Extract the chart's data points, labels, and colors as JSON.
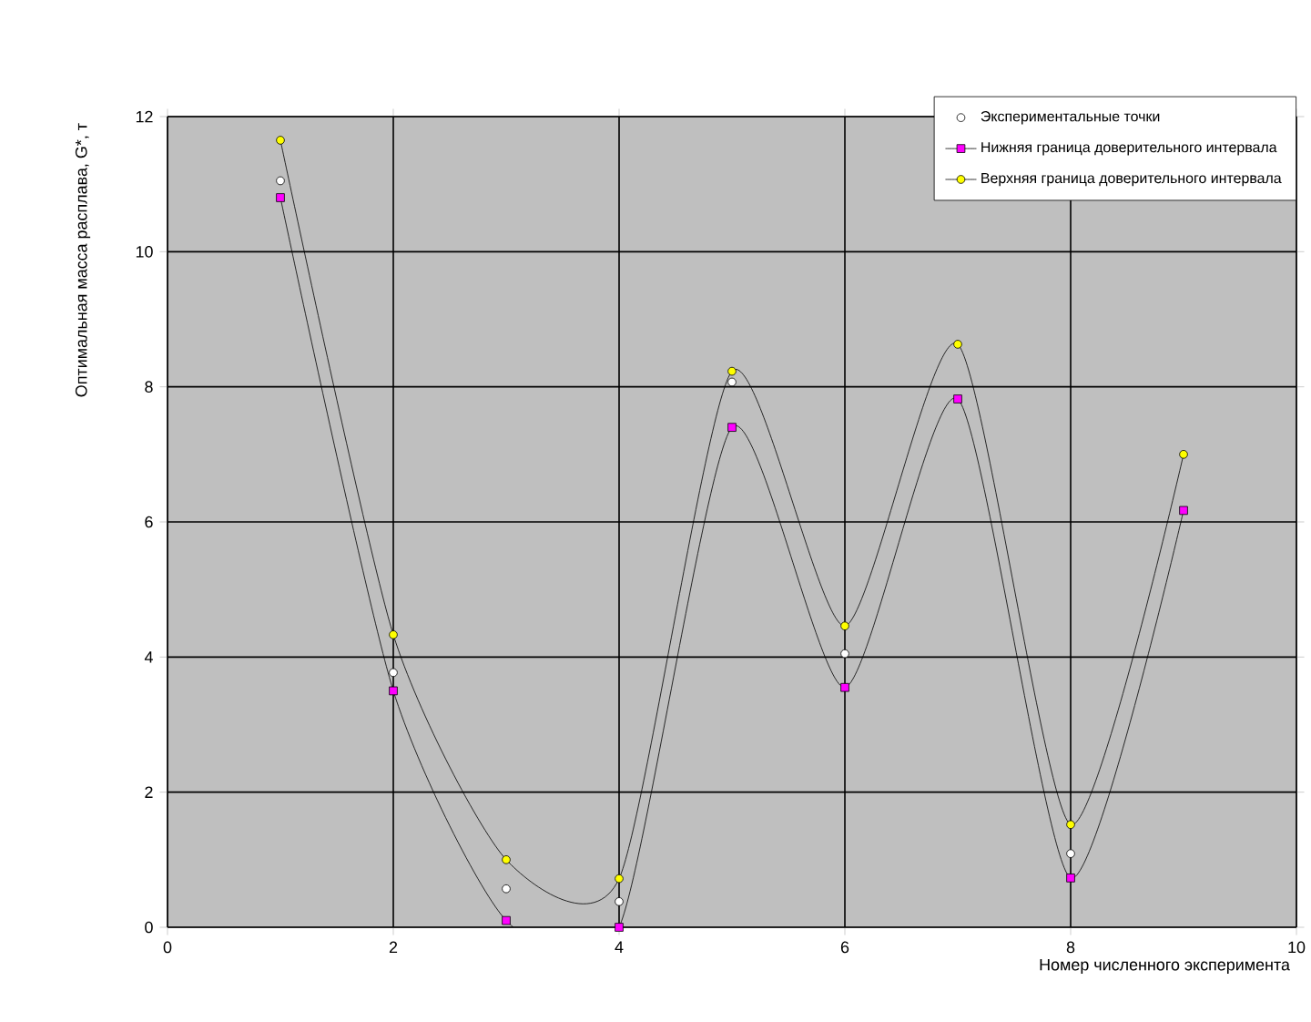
{
  "chart_data": {
    "type": "line",
    "xlabel": "Номер численного эксперимента",
    "ylabel": "Оптимальная масса расплава, G*, т",
    "x": [
      1,
      2,
      3,
      4,
      5,
      6,
      7,
      8,
      9
    ],
    "series": [
      {
        "name": "Экспериментальные точки",
        "type": "scatter",
        "marker": "circle",
        "color": "#ffffff",
        "values": [
          11.05,
          3.77,
          0.57,
          0.38,
          8.07,
          4.05,
          null,
          1.09,
          null
        ]
      },
      {
        "name": "Нижняя граница доверительного интервала",
        "marker": "square",
        "color": "#ff00ff",
        "values": [
          10.8,
          3.5,
          0.1,
          0.0,
          7.4,
          3.55,
          7.82,
          0.73,
          6.17
        ]
      },
      {
        "name": "Верхняя граница доверительного интервала",
        "marker": "circle",
        "color": "#ffff00",
        "values": [
          11.65,
          4.33,
          1.0,
          0.72,
          8.23,
          4.46,
          8.63,
          1.52,
          7.0
        ]
      }
    ],
    "xlim": [
      0,
      10
    ],
    "ylim": [
      0,
      12
    ],
    "xticks": [
      0,
      2,
      4,
      6,
      8,
      10
    ],
    "yticks": [
      0,
      2,
      4,
      6,
      8,
      10,
      12
    ],
    "grid": true,
    "legend": "top right"
  }
}
